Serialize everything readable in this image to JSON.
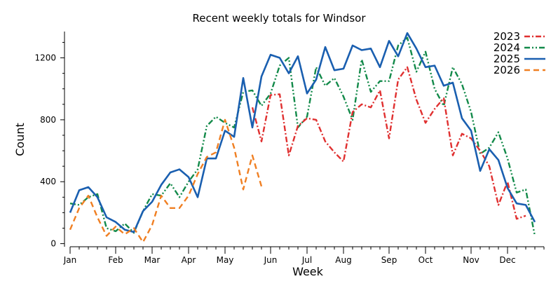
{
  "chart_data": {
    "type": "line",
    "title": "Recent weekly totals for Windsor",
    "xlabel": "Week",
    "ylabel": "Count",
    "x_unit": "week of year",
    "xlim": [
      1,
      53
    ],
    "ylim": [
      -20,
      1370
    ],
    "yticks": [
      0,
      400,
      800,
      1200
    ],
    "xticks": [
      {
        "week": 1,
        "label": "Jan"
      },
      {
        "week": 6,
        "label": "Feb"
      },
      {
        "week": 10,
        "label": "Mar"
      },
      {
        "week": 14,
        "label": "Apr"
      },
      {
        "week": 18,
        "label": "May"
      },
      {
        "week": 23,
        "label": "Jun"
      },
      {
        "week": 27,
        "label": "Jul"
      },
      {
        "week": 31,
        "label": "Aug"
      },
      {
        "week": 36,
        "label": "Sep"
      },
      {
        "week": 40,
        "label": "Oct"
      },
      {
        "week": 45,
        "label": "Nov"
      },
      {
        "week": 49,
        "label": "Dec"
      }
    ],
    "grid": false,
    "legend": "top-right",
    "series": [
      {
        "name": "2023",
        "color": "#e03030",
        "dash": "dot-dash",
        "x_start": 21,
        "values": [
          880,
          660,
          960,
          965,
          570,
          760,
          810,
          800,
          660,
          590,
          530,
          850,
          900,
          880,
          990,
          680,
          1060,
          1140,
          930,
          780,
          870,
          940,
          570,
          710,
          680,
          600,
          500,
          250,
          400,
          160,
          180
        ]
      },
      {
        "name": "2024",
        "color": "#138a4a",
        "dash": "dot-dot-dash",
        "x_start": 1,
        "values": [
          260,
          250,
          300,
          320,
          100,
          80,
          130,
          70,
          210,
          320,
          310,
          390,
          300,
          400,
          480,
          760,
          820,
          780,
          750,
          980,
          990,
          890,
          970,
          1150,
          1200,
          750,
          820,
          1140,
          1020,
          1070,
          950,
          800,
          1190,
          980,
          1050,
          1050,
          1280,
          1330,
          1110,
          1240,
          1000,
          890,
          1140,
          1030,
          850,
          580,
          620,
          720,
          550,
          330,
          350,
          50
        ]
      },
      {
        "name": "2025",
        "color": "#1a5fb0",
        "dash": "solid",
        "x_start": 1,
        "values": [
          200,
          345,
          365,
          300,
          170,
          140,
          90,
          75,
          210,
          270,
          380,
          460,
          480,
          430,
          300,
          550,
          550,
          730,
          690,
          1070,
          750,
          1080,
          1220,
          1200,
          1100,
          1210,
          970,
          1060,
          1270,
          1120,
          1130,
          1280,
          1250,
          1260,
          1140,
          1310,
          1210,
          1360,
          1260,
          1140,
          1150,
          1020,
          1040,
          810,
          730,
          470,
          610,
          540,
          360,
          260,
          250,
          140
        ]
      },
      {
        "name": "2026",
        "color": "#f07f22",
        "dash": "dash",
        "x_start": 1,
        "values": [
          90,
          230,
          310,
          170,
          50,
          110,
          60,
          100,
          10,
          120,
          310,
          230,
          230,
          310,
          450,
          560,
          590,
          800,
          620,
          350,
          570,
          370
        ]
      }
    ]
  }
}
